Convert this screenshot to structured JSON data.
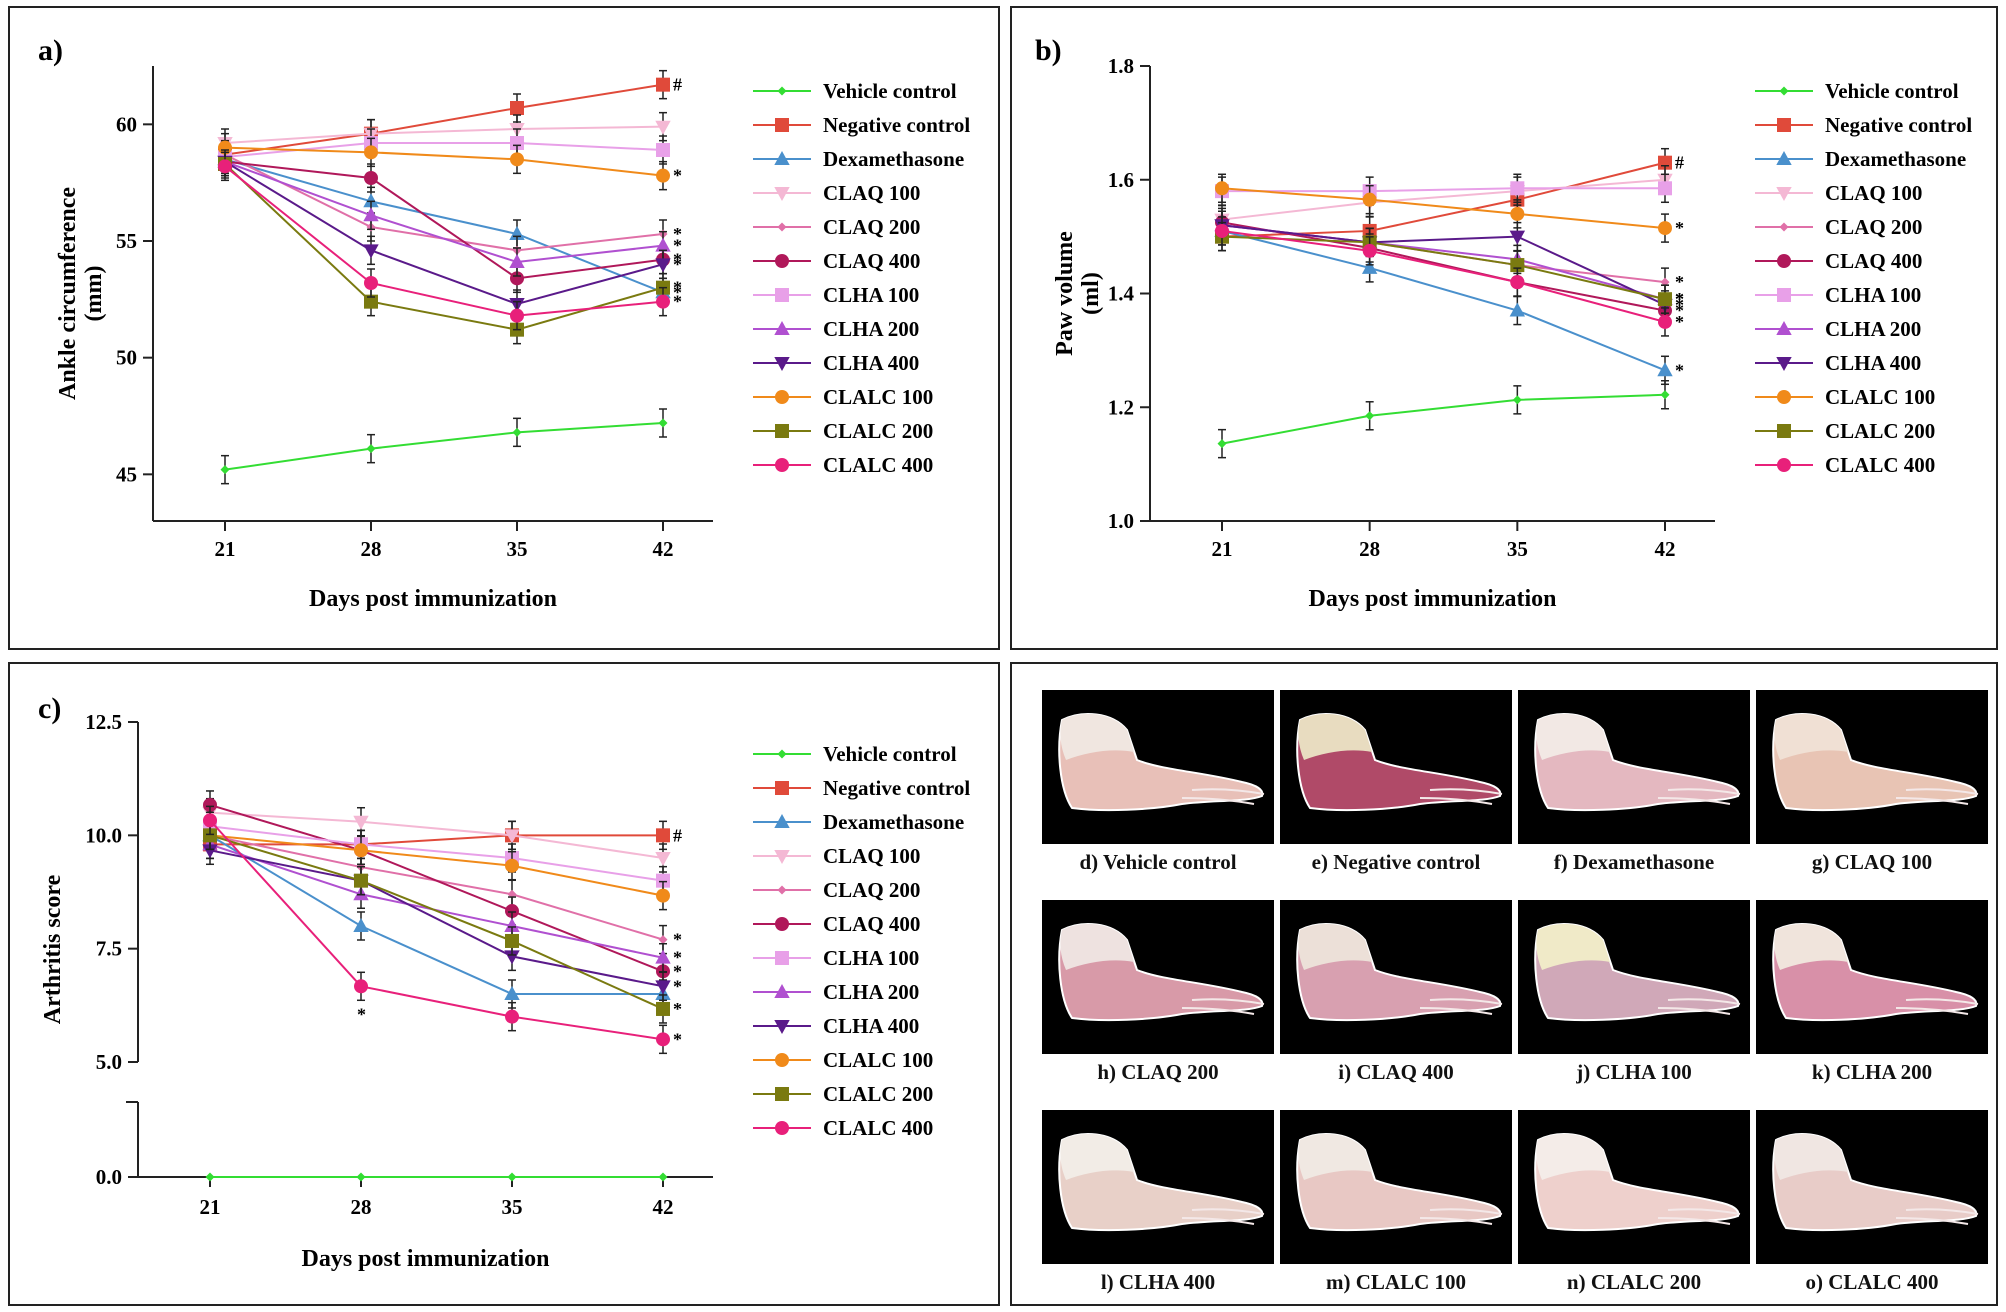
{
  "chart_data": [
    {
      "id": "a",
      "panel_label": "a)",
      "type": "line",
      "xlabel": "Days post  immunization",
      "ylabel": "Ankle circumference",
      "ylabel_unit": "(mm)",
      "x": [
        21,
        28,
        35,
        42
      ],
      "ylim": [
        43,
        62.5
      ],
      "yticks": [
        45,
        50,
        55,
        60
      ],
      "series": [
        {
          "name": "Vehicle control",
          "color": "#33dd33",
          "marker": "diamond",
          "values": [
            45.2,
            46.1,
            46.8,
            47.2
          ],
          "end_mark": ""
        },
        {
          "name": "Negative control",
          "color": "#e04a3a",
          "marker": "square",
          "values": [
            58.7,
            59.6,
            60.7,
            61.7
          ],
          "end_mark": "#"
        },
        {
          "name": "Dexamethasone",
          "color": "#4a90cc",
          "marker": "triangle",
          "values": [
            58.5,
            56.7,
            55.3,
            52.8
          ],
          "end_mark": "*"
        },
        {
          "name": "CLAQ 100",
          "color": "#f4b8d4",
          "marker": "triangle-down",
          "values": [
            59.2,
            59.6,
            59.8,
            59.9
          ],
          "end_mark": ""
        },
        {
          "name": "CLAQ 200",
          "color": "#e070a8",
          "marker": "diamond",
          "values": [
            58.7,
            55.6,
            54.6,
            55.3
          ],
          "end_mark": "*"
        },
        {
          "name": "CLAQ 400",
          "color": "#b0185a",
          "marker": "circle",
          "values": [
            58.4,
            57.7,
            53.4,
            54.2
          ],
          "end_mark": "*"
        },
        {
          "name": "CLHA 100",
          "color": "#e8a0e8",
          "marker": "square",
          "values": [
            58.6,
            59.2,
            59.2,
            58.9
          ],
          "end_mark": ""
        },
        {
          "name": "CLHA 200",
          "color": "#b050d0",
          "marker": "triangle",
          "values": [
            58.4,
            56.1,
            54.1,
            54.8
          ],
          "end_mark": "*"
        },
        {
          "name": "CLHA 400",
          "color": "#5a1a8a",
          "marker": "triangle-down",
          "values": [
            58.4,
            54.6,
            52.3,
            54.0
          ],
          "end_mark": "*"
        },
        {
          "name": "CLALC 100",
          "color": "#f08a1a",
          "marker": "circle",
          "values": [
            59.0,
            58.8,
            58.5,
            57.8
          ],
          "end_mark": "*"
        },
        {
          "name": "CLALC 200",
          "color": "#7a7a10",
          "marker": "square",
          "values": [
            58.3,
            52.4,
            51.2,
            53.0
          ],
          "end_mark": "*"
        },
        {
          "name": "CLALC 400",
          "color": "#e8207a",
          "marker": "circle",
          "values": [
            58.2,
            53.2,
            51.8,
            52.4
          ],
          "end_mark": "*"
        }
      ]
    },
    {
      "id": "b",
      "panel_label": "b)",
      "type": "line",
      "xlabel": "Days post  immunization",
      "ylabel": "Paw volume",
      "ylabel_unit": "(ml)",
      "x": [
        21,
        28,
        35,
        42
      ],
      "ylim": [
        1.0,
        1.8
      ],
      "yticks": [
        "1.0",
        "1.2",
        "1.4",
        "1.6",
        "1.8"
      ],
      "series": [
        {
          "name": "Vehicle control",
          "color": "#33dd33",
          "marker": "diamond",
          "values": [
            1.136,
            1.185,
            1.213,
            1.222
          ],
          "end_mark": ""
        },
        {
          "name": "Negative control",
          "color": "#e04a3a",
          "marker": "square",
          "values": [
            1.5,
            1.51,
            1.565,
            1.63
          ],
          "end_mark": "#"
        },
        {
          "name": "Dexamethasone",
          "color": "#4a90cc",
          "marker": "triangle",
          "values": [
            1.51,
            1.445,
            1.37,
            1.265
          ],
          "end_mark": "*"
        },
        {
          "name": "CLAQ 100",
          "color": "#f4b8d4",
          "marker": "triangle-down",
          "values": [
            1.53,
            1.56,
            1.58,
            1.6
          ],
          "end_mark": ""
        },
        {
          "name": "CLAQ 200",
          "color": "#e070a8",
          "marker": "diamond",
          "values": [
            1.52,
            1.49,
            1.45,
            1.42
          ],
          "end_mark": "*"
        },
        {
          "name": "CLAQ 400",
          "color": "#b0185a",
          "marker": "circle",
          "values": [
            1.525,
            1.48,
            1.42,
            1.37
          ],
          "end_mark": "*"
        },
        {
          "name": "CLHA 100",
          "color": "#e8a0e8",
          "marker": "square",
          "values": [
            1.58,
            1.58,
            1.585,
            1.585
          ],
          "end_mark": ""
        },
        {
          "name": "CLHA 200",
          "color": "#b050d0",
          "marker": "triangle",
          "values": [
            1.52,
            1.49,
            1.46,
            1.39
          ],
          "end_mark": "*"
        },
        {
          "name": "CLHA 400",
          "color": "#5a1a8a",
          "marker": "triangle-down",
          "values": [
            1.52,
            1.49,
            1.5,
            1.38
          ],
          "end_mark": "*"
        },
        {
          "name": "CLALC 100",
          "color": "#f08a1a",
          "marker": "circle",
          "values": [
            1.585,
            1.565,
            1.54,
            1.515
          ],
          "end_mark": "*"
        },
        {
          "name": "CLALC 200",
          "color": "#7a7a10",
          "marker": "square",
          "values": [
            1.5,
            1.49,
            1.45,
            1.39
          ],
          "end_mark": "*"
        },
        {
          "name": "CLALC 400",
          "color": "#e8207a",
          "marker": "circle",
          "values": [
            1.51,
            1.475,
            1.42,
            1.35
          ],
          "end_mark": "*"
        }
      ]
    },
    {
      "id": "c",
      "panel_label": "c)",
      "type": "line",
      "xlabel": "Days post  immunization",
      "ylabel": "Arthritis score",
      "ylabel_unit": "",
      "x": [
        21,
        28,
        35,
        42
      ],
      "ylim": [
        0,
        12.5
      ],
      "yticks": [
        "0.0",
        "5.0",
        "7.5",
        "10.0",
        "12.5"
      ],
      "axis_break": [
        0.0,
        5.0
      ],
      "series": [
        {
          "name": "Vehicle control",
          "color": "#33dd33",
          "marker": "diamond",
          "values": [
            0.0,
            0.0,
            0.0,
            0.0
          ],
          "end_mark": ""
        },
        {
          "name": "Negative control",
          "color": "#e04a3a",
          "marker": "square",
          "values": [
            9.8,
            9.8,
            10.0,
            10.0
          ],
          "end_mark": "#"
        },
        {
          "name": "Dexamethasone",
          "color": "#4a90cc",
          "marker": "triangle",
          "values": [
            10.0,
            8.0,
            6.5,
            6.5
          ],
          "end_mark": ""
        },
        {
          "name": "CLAQ 100",
          "color": "#f4b8d4",
          "marker": "triangle-down",
          "values": [
            10.5,
            10.3,
            10.0,
            9.5
          ],
          "end_mark": ""
        },
        {
          "name": "CLAQ 200",
          "color": "#e070a8",
          "marker": "diamond",
          "values": [
            10.0,
            9.3,
            8.7,
            7.7
          ],
          "end_mark": "*"
        },
        {
          "name": "CLAQ 400",
          "color": "#b0185a",
          "marker": "circle",
          "values": [
            10.67,
            9.67,
            8.33,
            7.0
          ],
          "end_mark": "*"
        },
        {
          "name": "CLHA 100",
          "color": "#e8a0e8",
          "marker": "square",
          "values": [
            10.2,
            9.8,
            9.5,
            9.0
          ],
          "end_mark": ""
        },
        {
          "name": "CLHA 200",
          "color": "#b050d0",
          "marker": "triangle",
          "values": [
            9.8,
            8.7,
            8.0,
            7.3
          ],
          "end_mark": "*"
        },
        {
          "name": "CLHA 400",
          "color": "#5a1a8a",
          "marker": "triangle-down",
          "values": [
            9.67,
            9.0,
            7.33,
            6.67
          ],
          "end_mark": "*"
        },
        {
          "name": "CLALC 100",
          "color": "#f08a1a",
          "marker": "circle",
          "values": [
            10.0,
            9.67,
            9.33,
            8.67
          ],
          "end_mark": ""
        },
        {
          "name": "CLALC 200",
          "color": "#7a7a10",
          "marker": "square",
          "values": [
            10.0,
            9.0,
            7.67,
            6.17
          ],
          "end_mark": "*"
        },
        {
          "name": "CLALC 400",
          "color": "#e8207a",
          "marker": "circle",
          "values": [
            10.33,
            6.67,
            6.0,
            5.5
          ],
          "end_mark": "*"
        }
      ],
      "extra_marks": [
        {
          "x": 28,
          "series": "CLALC 400",
          "mark": "*"
        }
      ]
    }
  ],
  "photos": [
    {
      "label": "d) Vehicle control",
      "tint": "#e8c0b8",
      "fur": "#f0e6e0"
    },
    {
      "label": "e) Negative control",
      "tint": "#b04a68",
      "fur": "#e8dcc0"
    },
    {
      "label": "f) Dexamethasone",
      "tint": "#e4b8c0",
      "fur": "#f2e8e4"
    },
    {
      "label": "g) CLAQ 100",
      "tint": "#e8c4b4",
      "fur": "#f0e0d4"
    },
    {
      "label": "h) CLAQ 200",
      "tint": "#d89aa8",
      "fur": "#eee2e0"
    },
    {
      "label": "i) CLAQ 400",
      "tint": "#d8a0b0",
      "fur": "#ece0d8"
    },
    {
      "label": "j) CLHA 100",
      "tint": "#d0a8b8",
      "fur": "#f0eac8"
    },
    {
      "label": "k) CLHA 200",
      "tint": "#d890a8",
      "fur": "#f0e4dc"
    },
    {
      "label": "l) CLHA 400",
      "tint": "#e8d0c8",
      "fur": "#f2ece6"
    },
    {
      "label": "m) CLALC 100",
      "tint": "#e8c8c4",
      "fur": "#f0e8e2"
    },
    {
      "label": "n) CLALC 200",
      "tint": "#eed0cc",
      "fur": "#f4ece8"
    },
    {
      "label": "o) CLALC 400",
      "tint": "#e8ccc8",
      "fur": "#f0e6e2"
    }
  ]
}
